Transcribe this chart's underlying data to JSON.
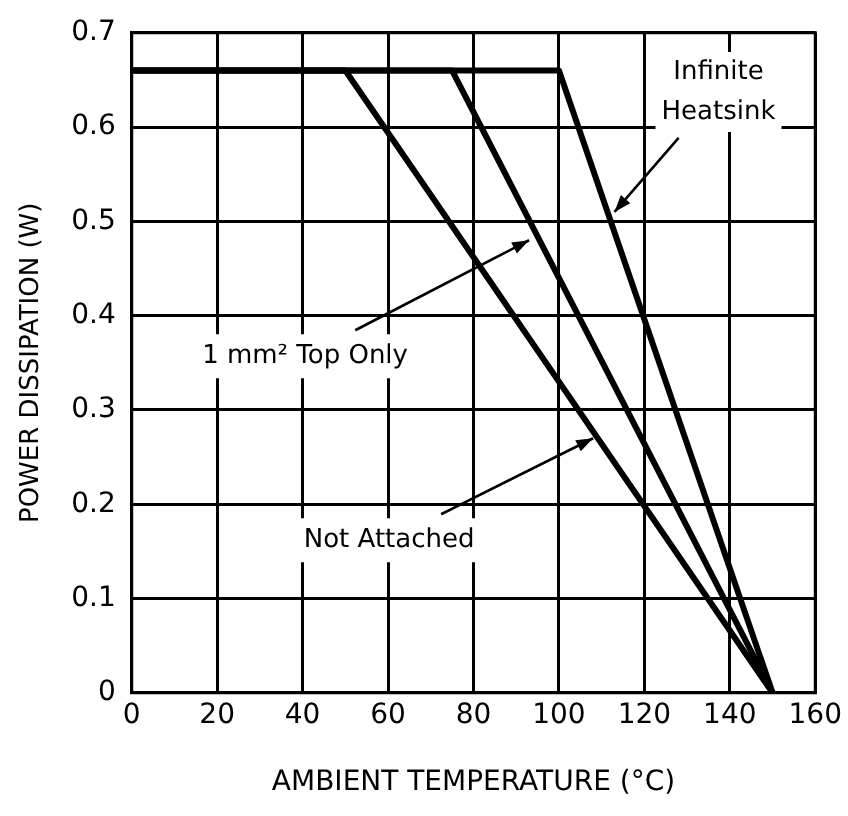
{
  "chart_data": {
    "type": "line",
    "xlabel": "AMBIENT TEMPERATURE (°C)",
    "ylabel": "POWER DISSIPATION (W)",
    "xlim": [
      0,
      160
    ],
    "xticks": [
      0,
      20,
      40,
      60,
      80,
      100,
      120,
      140,
      160
    ],
    "ylim": [
      0,
      0.7
    ],
    "yticks": [
      0,
      0.1,
      0.2,
      0.3,
      0.4,
      0.5,
      0.6,
      0.7
    ],
    "grid": true,
    "marker": "none",
    "line_style": "solid",
    "series": [
      {
        "color": "#000000",
        "x": [
          0,
          50,
          150
        ],
        "values": [
          0.66,
          0.66,
          0
        ]
      },
      {
        "color": "#000000",
        "x": [
          0,
          75,
          150
        ],
        "values": [
          0.66,
          0.66,
          0
        ]
      },
      {
        "color": "#000000",
        "x": [
          0,
          100,
          150
        ],
        "values": [
          0.66,
          0.66,
          0
        ]
      }
    ],
    "annotations": [
      {
        "text": "Infinite\nHeatsink",
        "x": 113,
        "y": 0.51
      },
      {
        "text": "1 mm² Top Only",
        "x": 93,
        "y": 0.48
      },
      {
        "text": "Not Attached",
        "x": 108,
        "y": 0.27
      }
    ]
  }
}
